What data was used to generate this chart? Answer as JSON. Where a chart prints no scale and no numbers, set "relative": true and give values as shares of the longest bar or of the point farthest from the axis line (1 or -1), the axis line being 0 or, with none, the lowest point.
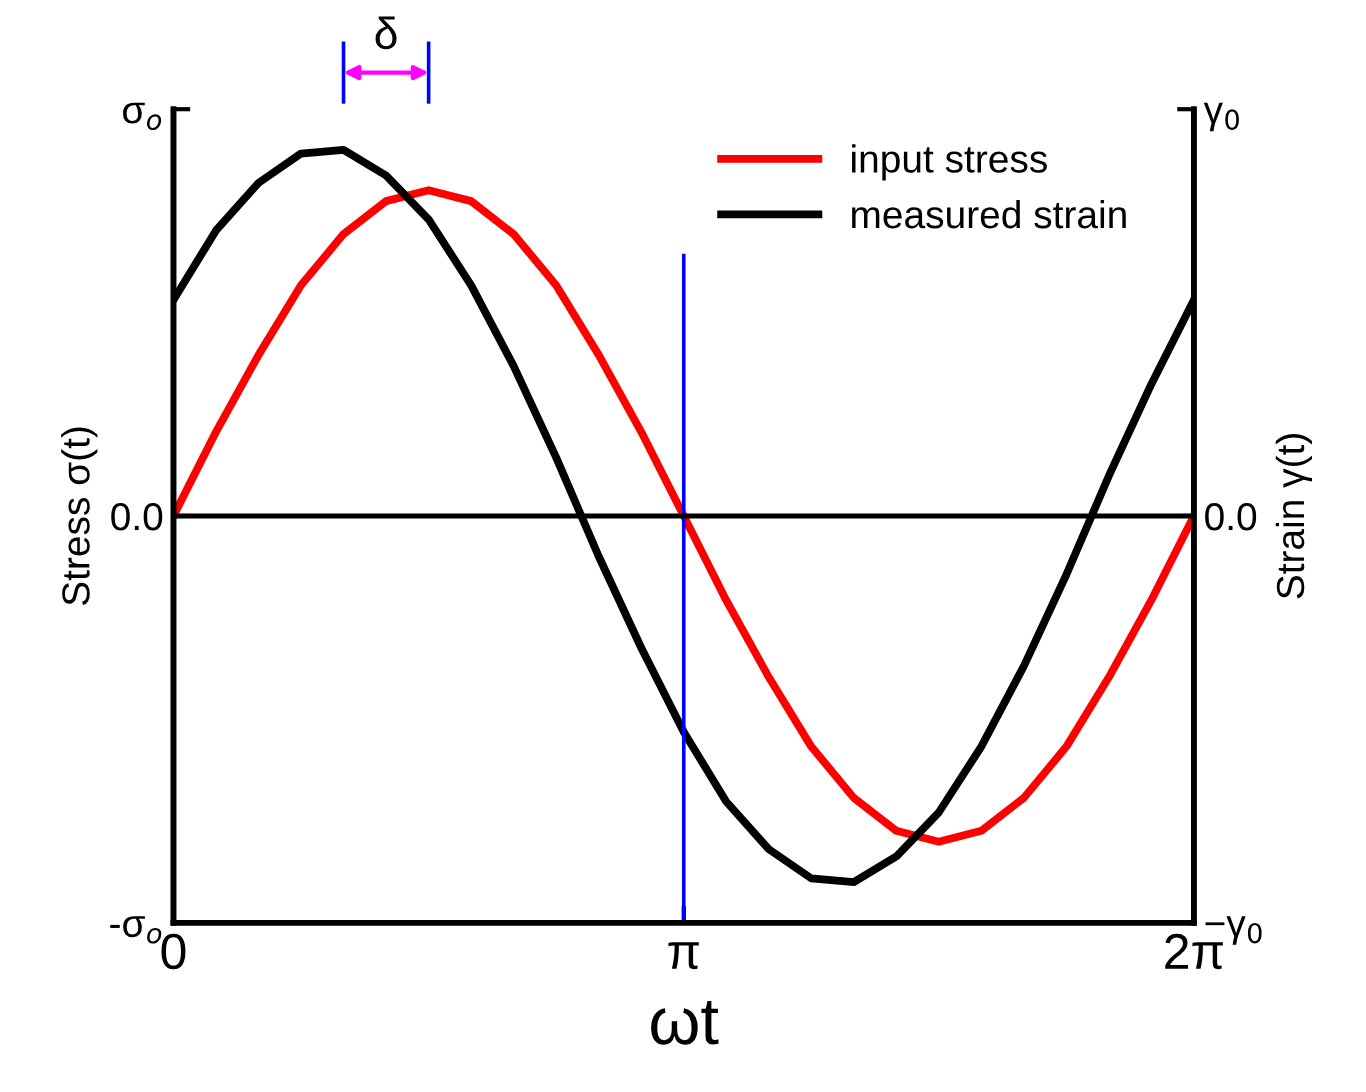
{
  "chart_data": {
    "type": "line",
    "relative": true,
    "xlabel": "ωt",
    "ylabel": "Stress σ(t)",
    "y2label": "Strain γ(t)",
    "x": [
      0,
      0.262,
      0.524,
      0.785,
      1.047,
      1.309,
      1.571,
      1.833,
      2.094,
      2.356,
      2.618,
      2.88,
      3.142,
      3.403,
      3.665,
      3.927,
      4.189,
      4.451,
      4.712,
      4.974,
      5.236,
      5.498,
      5.76,
      6.021,
      6.283
    ],
    "series": [
      {
        "name": "input stress",
        "color": "#ff0000",
        "values": [
          0,
          0.23,
          0.44,
          0.63,
          0.77,
          0.86,
          0.89,
          0.86,
          0.77,
          0.63,
          0.44,
          0.23,
          0,
          -0.23,
          -0.44,
          -0.63,
          -0.77,
          -0.86,
          -0.89,
          -0.86,
          -0.77,
          -0.63,
          -0.44,
          -0.23,
          0
        ]
      },
      {
        "name": "measured strain",
        "color": "#000000",
        "values": [
          0.59,
          0.78,
          0.91,
          0.99,
          1,
          0.93,
          0.81,
          0.63,
          0.41,
          0.16,
          -0.11,
          -0.36,
          -0.59,
          -0.78,
          -0.91,
          -0.99,
          -1,
          -0.93,
          -0.81,
          -0.63,
          -0.41,
          -0.16,
          0.11,
          0.36,
          0.59
        ]
      }
    ],
    "xlim": [
      0,
      6.283
    ],
    "xticks": [
      0,
      {
        "value": 3.142,
        "label": "π"
      },
      {
        "value": 6.283,
        "label": "2π"
      }
    ],
    "ref_lines": [
      {
        "axis": "x",
        "value": 3.142,
        "color": "#0000ff"
      },
      {
        "axis": "y",
        "value": 0,
        "color": "#000000"
      }
    ],
    "annotations": [
      "δ",
      "σ$_{o}$",
      "0.0",
      "-σ$_{o}$",
      "γ$_{0}$",
      "0.0",
      "−γ$_{0}$"
    ],
    "legend": "top right",
    "grid": false,
    "marker": "none",
    "line_style": "solid"
  }
}
